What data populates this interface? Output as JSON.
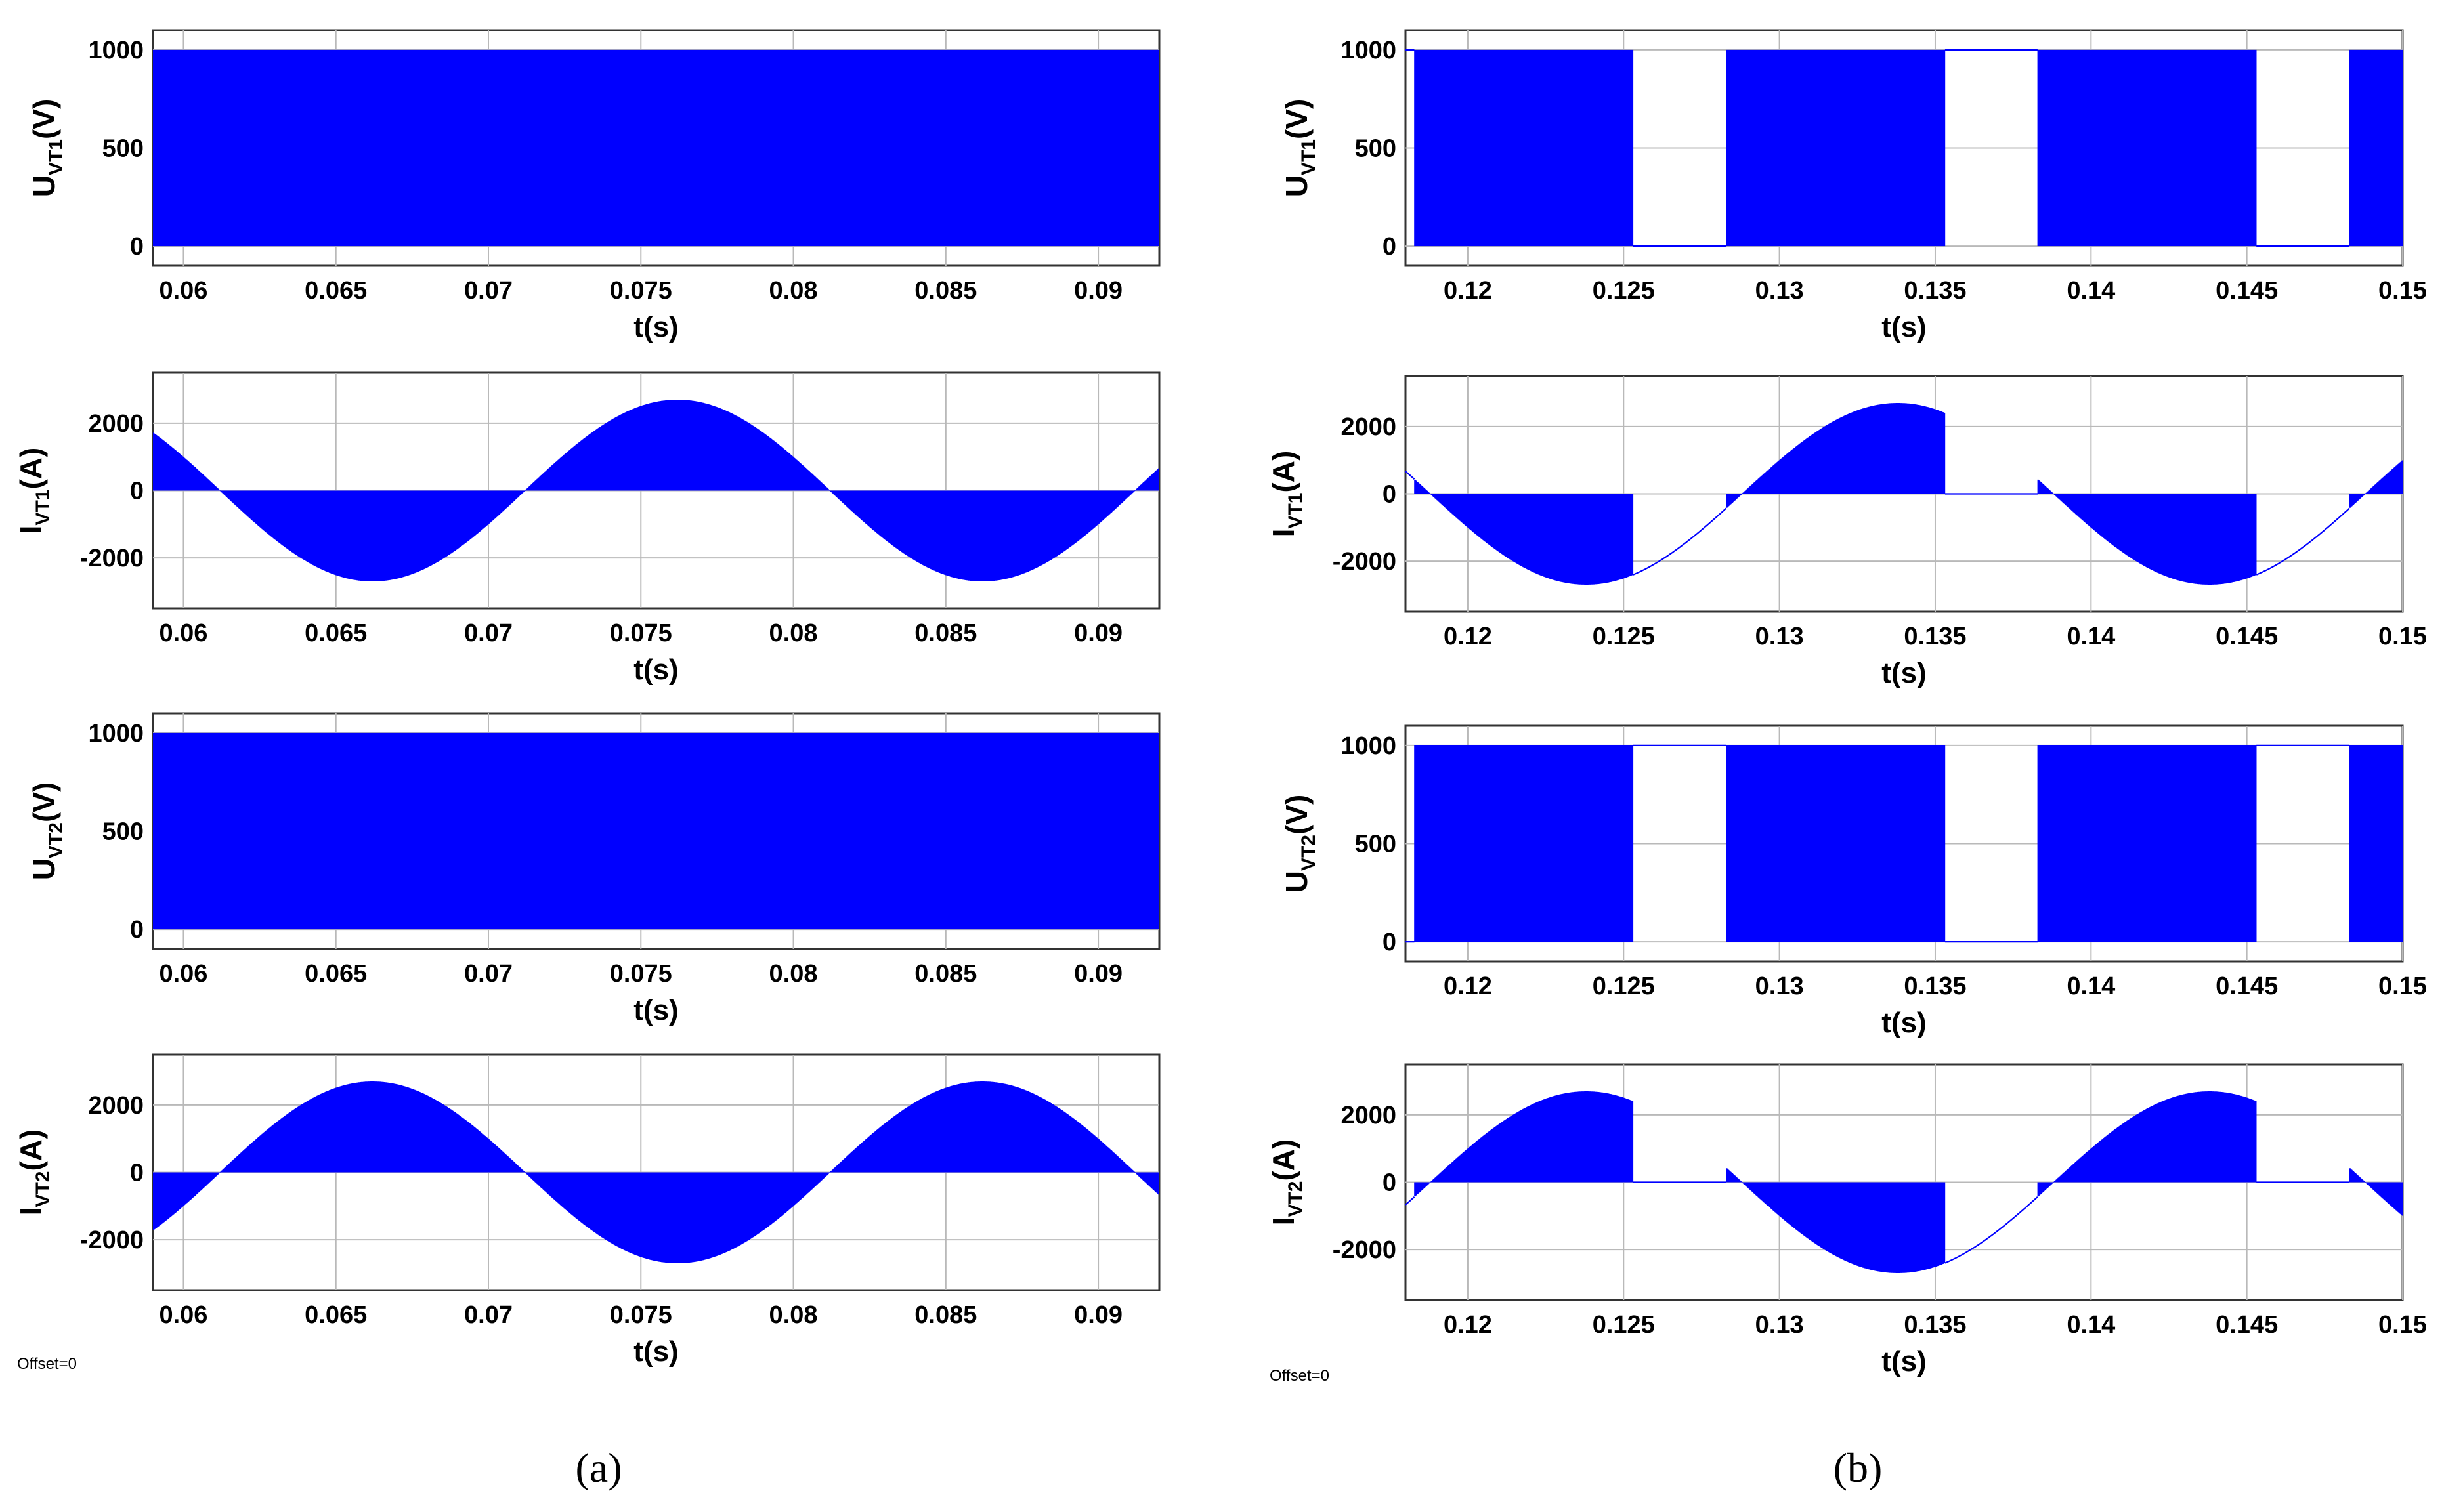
{
  "figure": {
    "panel_labels": [
      "(a)",
      "(b)"
    ],
    "offset_notes": [
      "Offset=0",
      "Offset=0"
    ],
    "trace_color": "#0000ff"
  },
  "chart_data": [
    {
      "id": "a1",
      "type": "line",
      "column": "a",
      "row": 1,
      "ylabel": {
        "main": "U",
        "sub": "VT1",
        "unit": "(V)"
      },
      "xlabel": "t(s)",
      "xlim": [
        0.059,
        0.092
      ],
      "ylim": [
        -100,
        1100
      ],
      "xticks": [
        0.06,
        0.065,
        0.07,
        0.075,
        0.08,
        0.085,
        0.09
      ],
      "xtick_labels": [
        "0.06",
        "0.065",
        "0.07",
        "0.075",
        "0.08",
        "0.085",
        "0.09"
      ],
      "yticks": [
        0,
        500,
        1000
      ],
      "ytick_labels": [
        "0",
        "500",
        "1000"
      ],
      "series": [
        {
          "name": "U_VT1",
          "kind": "voltage",
          "amplitude": 1000,
          "switching": "continuous",
          "description": "PWM switching between 0 and 1000 V over the whole window"
        }
      ]
    },
    {
      "id": "a2",
      "type": "line",
      "column": "a",
      "row": 2,
      "ylabel": {
        "main": "I",
        "sub": "VT1",
        "unit": "(A)"
      },
      "xlabel": "t(s)",
      "xlim": [
        0.059,
        0.092
      ],
      "ylim": [
        -3500,
        3500
      ],
      "xticks": [
        0.06,
        0.065,
        0.07,
        0.075,
        0.08,
        0.085,
        0.09
      ],
      "xtick_labels": [
        "0.06",
        "0.065",
        "0.07",
        "0.075",
        "0.08",
        "0.085",
        "0.09"
      ],
      "yticks": [
        -2000,
        0,
        2000
      ],
      "ytick_labels": [
        "-2000",
        "0",
        "2000"
      ],
      "series": [
        {
          "name": "I_VT1",
          "kind": "current",
          "amplitude": 2700,
          "period": 0.02,
          "zero_crossing": 0.0712,
          "rising": true,
          "switching": "continuous"
        }
      ]
    },
    {
      "id": "a3",
      "type": "line",
      "column": "a",
      "row": 3,
      "ylabel": {
        "main": "U",
        "sub": "VT2",
        "unit": "(V)"
      },
      "xlabel": "t(s)",
      "xlim": [
        0.059,
        0.092
      ],
      "ylim": [
        -100,
        1100
      ],
      "xticks": [
        0.06,
        0.065,
        0.07,
        0.075,
        0.08,
        0.085,
        0.09
      ],
      "xtick_labels": [
        "0.06",
        "0.065",
        "0.07",
        "0.075",
        "0.08",
        "0.085",
        "0.09"
      ],
      "yticks": [
        0,
        500,
        1000
      ],
      "ytick_labels": [
        "0",
        "500",
        "1000"
      ],
      "series": [
        {
          "name": "U_VT2",
          "kind": "voltage",
          "amplitude": 1000,
          "switching": "continuous"
        }
      ]
    },
    {
      "id": "a4",
      "type": "line",
      "column": "a",
      "row": 4,
      "ylabel": {
        "main": "I",
        "sub": "VT2",
        "unit": "(A)"
      },
      "xlabel": "t(s)",
      "xlim": [
        0.059,
        0.092
      ],
      "ylim": [
        -3500,
        3500
      ],
      "xticks": [
        0.06,
        0.065,
        0.07,
        0.075,
        0.08,
        0.085,
        0.09
      ],
      "xtick_labels": [
        "0.06",
        "0.065",
        "0.07",
        "0.075",
        "0.08",
        "0.085",
        "0.09"
      ],
      "yticks": [
        -2000,
        0,
        2000
      ],
      "ytick_labels": [
        "-2000",
        "0",
        "2000"
      ],
      "series": [
        {
          "name": "I_VT2",
          "kind": "current",
          "amplitude": 2700,
          "period": 0.02,
          "zero_crossing": 0.0612,
          "rising": true,
          "switching": "continuous"
        }
      ]
    },
    {
      "id": "b1",
      "type": "line",
      "column": "b",
      "row": 1,
      "ylabel": {
        "main": "U",
        "sub": "VT1",
        "unit": "(V)"
      },
      "xlabel": "t(s)",
      "xlim": [
        0.118,
        0.15
      ],
      "ylim": [
        -100,
        1100
      ],
      "xticks": [
        0.12,
        0.125,
        0.13,
        0.135,
        0.14,
        0.145,
        0.15
      ],
      "xtick_labels": [
        "0.12",
        "0.125",
        "0.13",
        "0.135",
        "0.14",
        "0.145",
        "0.15"
      ],
      "yticks": [
        0,
        500,
        1000
      ],
      "ytick_labels": [
        "0",
        "500",
        "1000"
      ],
      "series": [
        {
          "name": "U_VT1",
          "kind": "voltage",
          "amplitude": 1000,
          "switching": "segmented",
          "segments": [
            {
              "from": 0.118,
              "to": 0.1183,
              "level": 1000
            },
            {
              "from": 0.1183,
              "to": 0.1253,
              "level": "pwm"
            },
            {
              "from": 0.1253,
              "to": 0.1283,
              "level": 0
            },
            {
              "from": 0.1283,
              "to": 0.1353,
              "level": "pwm"
            },
            {
              "from": 0.1353,
              "to": 0.1383,
              "level": 1000
            },
            {
              "from": 0.1383,
              "to": 0.1453,
              "level": "pwm"
            },
            {
              "from": 0.1453,
              "to": 0.1483,
              "level": 0
            },
            {
              "from": 0.1483,
              "to": 0.15,
              "level": "pwm"
            }
          ]
        }
      ]
    },
    {
      "id": "b2",
      "type": "line",
      "column": "b",
      "row": 2,
      "ylabel": {
        "main": "I",
        "sub": "VT1",
        "unit": "(A)"
      },
      "xlabel": "t(s)",
      "xlim": [
        0.118,
        0.15
      ],
      "ylim": [
        -3500,
        3500
      ],
      "xticks": [
        0.12,
        0.125,
        0.13,
        0.135,
        0.14,
        0.145,
        0.15
      ],
      "xtick_labels": [
        "0.12",
        "0.125",
        "0.13",
        "0.135",
        "0.14",
        "0.145",
        "0.15"
      ],
      "yticks": [
        -2000,
        0,
        2000
      ],
      "ytick_labels": [
        "-2000",
        "0",
        "2000"
      ],
      "series": [
        {
          "name": "I_VT1",
          "kind": "current",
          "amplitude": 2700,
          "period": 0.02,
          "zero_crossing": 0.1288,
          "rising": true,
          "switching": "segmented",
          "segments": [
            {
              "from": 0.118,
              "to": 0.1183,
              "mode": "line"
            },
            {
              "from": 0.1183,
              "to": 0.1253,
              "mode": "pwm"
            },
            {
              "from": 0.1253,
              "to": 0.1283,
              "mode": "line"
            },
            {
              "from": 0.1283,
              "to": 0.1353,
              "mode": "pwm"
            },
            {
              "from": 0.1353,
              "to": 0.1383,
              "mode": "zero"
            },
            {
              "from": 0.1383,
              "to": 0.1453,
              "mode": "pwm"
            },
            {
              "from": 0.1453,
              "to": 0.1483,
              "mode": "line"
            },
            {
              "from": 0.1483,
              "to": 0.15,
              "mode": "pwm"
            }
          ]
        }
      ]
    },
    {
      "id": "b3",
      "type": "line",
      "column": "b",
      "row": 3,
      "ylabel": {
        "main": "U",
        "sub": "VT2",
        "unit": "(V)"
      },
      "xlabel": "t(s)",
      "xlim": [
        0.118,
        0.15
      ],
      "ylim": [
        -100,
        1100
      ],
      "xticks": [
        0.12,
        0.125,
        0.13,
        0.135,
        0.14,
        0.145,
        0.15
      ],
      "xtick_labels": [
        "0.12",
        "0.125",
        "0.13",
        "0.135",
        "0.14",
        "0.145",
        "0.15"
      ],
      "yticks": [
        0,
        500,
        1000
      ],
      "ytick_labels": [
        "0",
        "500",
        "1000"
      ],
      "series": [
        {
          "name": "U_VT2",
          "kind": "voltage",
          "amplitude": 1000,
          "switching": "segmented",
          "segments": [
            {
              "from": 0.118,
              "to": 0.1183,
              "level": 0
            },
            {
              "from": 0.1183,
              "to": 0.1253,
              "level": "pwm"
            },
            {
              "from": 0.1253,
              "to": 0.1283,
              "level": 1000
            },
            {
              "from": 0.1283,
              "to": 0.1353,
              "level": "pwm"
            },
            {
              "from": 0.1353,
              "to": 0.1383,
              "level": 0
            },
            {
              "from": 0.1383,
              "to": 0.1453,
              "level": "pwm"
            },
            {
              "from": 0.1453,
              "to": 0.1483,
              "level": 1000
            },
            {
              "from": 0.1483,
              "to": 0.15,
              "level": "pwm"
            }
          ]
        }
      ]
    },
    {
      "id": "b4",
      "type": "line",
      "column": "b",
      "row": 4,
      "ylabel": {
        "main": "I",
        "sub": "VT2",
        "unit": "(A)"
      },
      "xlabel": "t(s)",
      "xlim": [
        0.118,
        0.15
      ],
      "ylim": [
        -3500,
        3500
      ],
      "xticks": [
        0.12,
        0.125,
        0.13,
        0.135,
        0.14,
        0.145,
        0.15
      ],
      "xtick_labels": [
        "0.12",
        "0.125",
        "0.13",
        "0.135",
        "0.14",
        "0.145",
        "0.15"
      ],
      "yticks": [
        -2000,
        0,
        2000
      ],
      "ytick_labels": [
        "-2000",
        "0",
        "2000"
      ],
      "series": [
        {
          "name": "I_VT2",
          "kind": "current",
          "amplitude": 2700,
          "period": 0.02,
          "zero_crossing": 0.1188,
          "rising": true,
          "switching": "segmented",
          "segments": [
            {
              "from": 0.118,
              "to": 0.1183,
              "mode": "line"
            },
            {
              "from": 0.1183,
              "to": 0.1253,
              "mode": "pwm"
            },
            {
              "from": 0.1253,
              "to": 0.1283,
              "mode": "zero"
            },
            {
              "from": 0.1283,
              "to": 0.1353,
              "mode": "pwm"
            },
            {
              "from": 0.1353,
              "to": 0.1383,
              "mode": "line"
            },
            {
              "from": 0.1383,
              "to": 0.1453,
              "mode": "pwm"
            },
            {
              "from": 0.1453,
              "to": 0.1483,
              "mode": "zero"
            },
            {
              "from": 0.1483,
              "to": 0.15,
              "mode": "pwm"
            }
          ]
        }
      ]
    }
  ]
}
